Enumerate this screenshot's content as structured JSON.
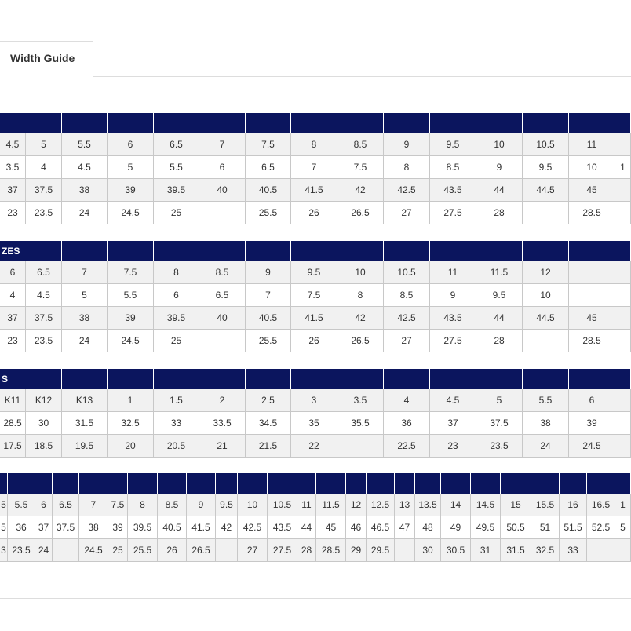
{
  "tabs": [
    {
      "label": "Width Guide"
    }
  ],
  "tables": [
    {
      "rows": [
        [
          "4.5",
          "5",
          "5.5",
          "6",
          "6.5",
          "7",
          "7.5",
          "8",
          "8.5",
          "9",
          "9.5",
          "10",
          "10.5",
          "11",
          null
        ],
        [
          "3.5",
          "4",
          "4.5",
          "5",
          "5.5",
          "6",
          "6.5",
          "7",
          "7.5",
          "8",
          "8.5",
          "9",
          "9.5",
          "10",
          "1"
        ],
        [
          "37",
          "37.5",
          "38",
          "39",
          "39.5",
          "40",
          "40.5",
          "41.5",
          "42",
          "42.5",
          "43.5",
          "44",
          "44.5",
          "45",
          null
        ],
        [
          "23",
          "23.5",
          "24",
          "24.5",
          "25",
          null,
          "25.5",
          "26",
          "26.5",
          "27",
          "27.5",
          "28",
          null,
          "28.5",
          null
        ]
      ]
    },
    {
      "header": "ZES",
      "rows": [
        [
          "6",
          "6.5",
          "7",
          "7.5",
          "8",
          "8.5",
          "9",
          "9.5",
          "10",
          "10.5",
          "11",
          "11.5",
          "12",
          null,
          null
        ],
        [
          "4",
          "4.5",
          "5",
          "5.5",
          "6",
          "6.5",
          "7",
          "7.5",
          "8",
          "8.5",
          "9",
          "9.5",
          "10",
          null,
          null
        ],
        [
          "37",
          "37.5",
          "38",
          "39",
          "39.5",
          "40",
          "40.5",
          "41.5",
          "42",
          "42.5",
          "43.5",
          "44",
          "44.5",
          "45",
          null
        ],
        [
          "23",
          "23.5",
          "24",
          "24.5",
          "25",
          null,
          "25.5",
          "26",
          "26.5",
          "27",
          "27.5",
          "28",
          null,
          "28.5",
          null
        ]
      ]
    },
    {
      "header": "S",
      "rows": [
        [
          "K11",
          "K12",
          "K13",
          "1",
          "1.5",
          "2",
          "2.5",
          "3",
          "3.5",
          "4",
          "4.5",
          "5",
          "5.5",
          "6",
          null
        ],
        [
          "28.5",
          "30",
          "31.5",
          "32.5",
          "33",
          "33.5",
          "34.5",
          "35",
          "35.5",
          "36",
          "37",
          "37.5",
          "38",
          "39",
          null
        ],
        [
          "17.5",
          "18.5",
          "19.5",
          "20",
          "20.5",
          "21",
          "21.5",
          "22",
          null,
          "22.5",
          "23",
          "23.5",
          "24",
          "24.5",
          null
        ]
      ]
    },
    {
      "rows": [
        [
          "5",
          "5.5",
          "6",
          "6.5",
          "7",
          "7.5",
          "8",
          "8.5",
          "9",
          "9.5",
          "10",
          "10.5",
          "11",
          "11.5",
          "12",
          "12.5",
          "13",
          "13.5",
          "14",
          "14.5",
          "15",
          "15.5",
          "16",
          "16.5",
          "1"
        ],
        [
          "5",
          "36",
          "37",
          "37.5",
          "38",
          "39",
          "39.5",
          "40.5",
          "41.5",
          "42",
          "42.5",
          "43.5",
          "44",
          "45",
          "46",
          "46.5",
          "47",
          "48",
          "49",
          "49.5",
          "50.5",
          "51",
          "51.5",
          "52.5",
          "5"
        ],
        [
          "3",
          "23.5",
          "24",
          null,
          "24.5",
          "25",
          "25.5",
          "26",
          "26.5",
          null,
          "27",
          "27.5",
          "28",
          "28.5",
          "29",
          "29.5",
          null,
          "30",
          "30.5",
          "31",
          "31.5",
          "32.5",
          "33",
          null,
          null
        ]
      ]
    }
  ]
}
